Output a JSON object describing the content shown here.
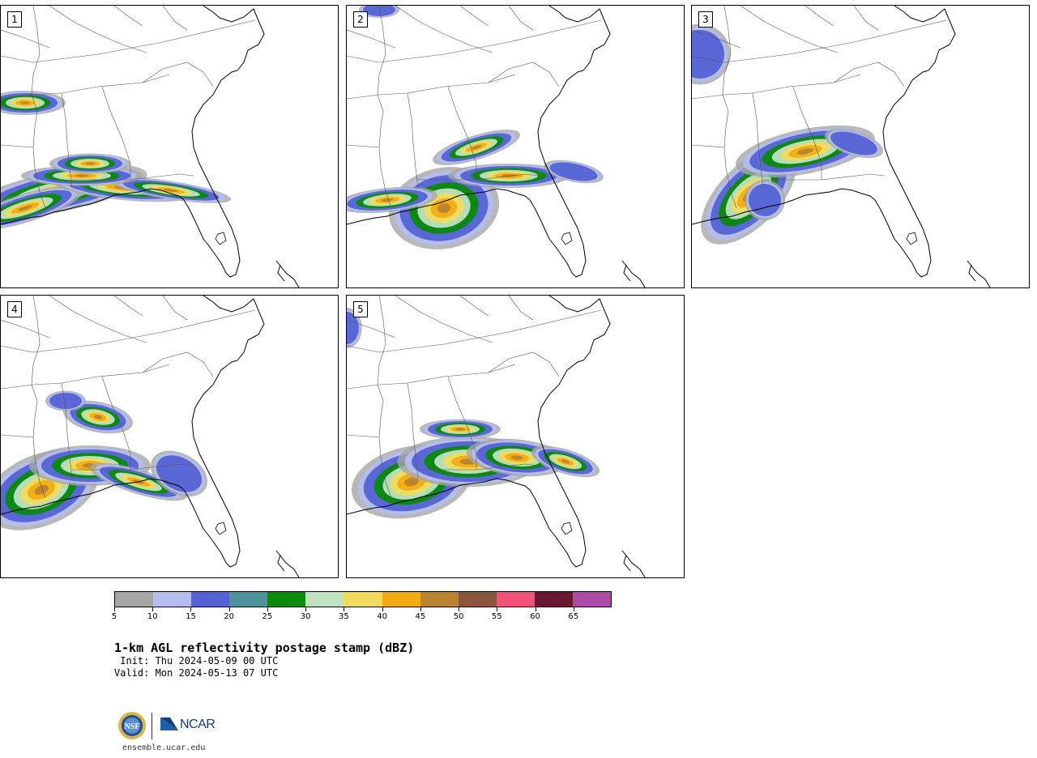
{
  "panels": [
    {
      "label": "1"
    },
    {
      "label": "2"
    },
    {
      "label": "3"
    },
    {
      "label": "4"
    },
    {
      "label": "5"
    }
  ],
  "colorbar": {
    "colors": [
      "#a6a6a6",
      "#b3bdef",
      "#5462d6",
      "#4f949c",
      "#0b8a0b",
      "#bfe2c2",
      "#f0db5c",
      "#f2ac12",
      "#bb832e",
      "#8b563b",
      "#f2517a",
      "#6b1833",
      "#ad4ba7"
    ],
    "tick_labels": [
      "5",
      "10",
      "15",
      "20",
      "25",
      "30",
      "35",
      "40",
      "45",
      "50",
      "55",
      "60",
      "65"
    ]
  },
  "title": "1-km AGL reflectivity postage stamp (dBZ)",
  "init": " Init: Thu 2024-05-09 00 UTC",
  "valid": "Valid: Mon 2024-05-13 07 UTC",
  "logos": {
    "ncar_text": "NCAR",
    "nsf_text": "NSF"
  },
  "url": "ensemble.ucar.edu"
}
